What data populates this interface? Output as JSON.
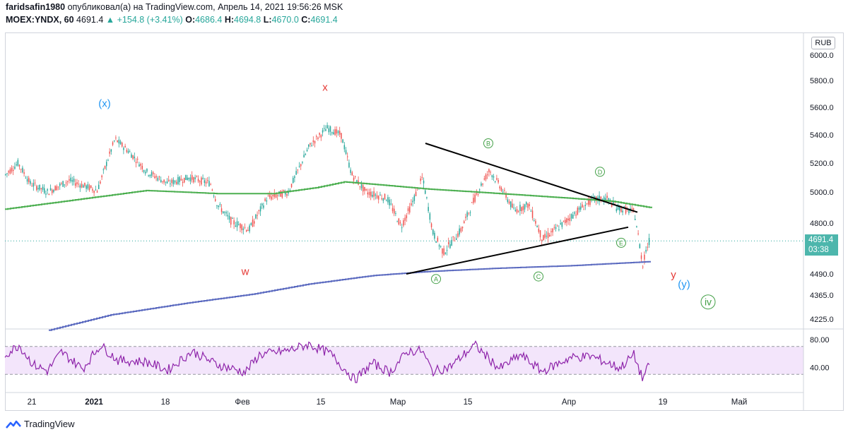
{
  "header": {
    "user": "faridsafin1980",
    "published": "опубликовал(а) на TradingView.com, Апрель 14, 2021 19:56:26 MSK",
    "symbol": "MOEX:YNDX, 60",
    "last": "4691.4",
    "change": "▲ +154.8 (+3.41%)",
    "o_label": "O:",
    "o": "4686.4",
    "h_label": "H:",
    "h": "4694.8",
    "l_label": "L:",
    "l": "4670.0",
    "c_label": "C:",
    "c": "4691.4"
  },
  "currency": "RUB",
  "price_tag": {
    "price": "4691.4",
    "countdown": "03:38"
  },
  "brand": "TradingView",
  "colors": {
    "up": "#26a69a",
    "down": "#ef5350",
    "ma_slow": "#5c6bc0",
    "ma_fast": "#4caf50",
    "rsi": "#8e24aa",
    "rsi_band": "#f3e5fb",
    "wave_red": "#e53935",
    "wave_blue": "#2196f3",
    "wave_green": "#43a047"
  },
  "chart_data": [
    {
      "type": "candlestick",
      "title": "MOEX:YNDX, 60",
      "y_ticks": [
        "6000.0",
        "5800.0",
        "5600.0",
        "5400.0",
        "5200.0",
        "5000.0",
        "4800.0",
        "4490.0",
        "4365.0",
        "4225.0"
      ],
      "y_tick_values": [
        6000,
        5800,
        5600,
        5400,
        5200,
        5000,
        4800,
        4490,
        4365,
        4225
      ],
      "x_ticks": [
        "21",
        "2021",
        "18",
        "Фев",
        "15",
        "Мар",
        "15",
        "Апр",
        "19",
        "Май"
      ],
      "x_tick_bold": [
        false,
        true,
        false,
        false,
        false,
        false,
        false,
        false,
        false,
        false
      ],
      "series": [
        {
          "name": "price",
          "points": [
            [
              0,
              5120
            ],
            [
              18,
              5200
            ],
            [
              35,
              5060
            ],
            [
              60,
              5000
            ],
            [
              90,
              5080
            ],
            [
              130,
              5010
            ],
            [
              155,
              5370
            ],
            [
              175,
              5280
            ],
            [
              200,
              5140
            ],
            [
              230,
              5060
            ],
            [
              260,
              5100
            ],
            [
              290,
              5060
            ],
            [
              300,
              4920
            ],
            [
              320,
              4810
            ],
            [
              345,
              4760
            ],
            [
              370,
              4960
            ],
            [
              400,
              5000
            ],
            [
              430,
              5320
            ],
            [
              455,
              5450
            ],
            [
              475,
              5400
            ],
            [
              490,
              5120
            ],
            [
              510,
              5000
            ],
            [
              540,
              4960
            ],
            [
              560,
              4780
            ],
            [
              575,
              4920
            ],
            [
              590,
              5100
            ],
            [
              605,
              4740
            ],
            [
              620,
              4620
            ],
            [
              645,
              4760
            ],
            [
              670,
              5020
            ],
            [
              685,
              5150
            ],
            [
              700,
              5040
            ],
            [
              720,
              4880
            ],
            [
              740,
              4920
            ],
            [
              760,
              4700
            ],
            [
              790,
              4800
            ],
            [
              810,
              4880
            ],
            [
              830,
              4950
            ],
            [
              850,
              4960
            ],
            [
              865,
              4900
            ],
            [
              890,
              4870
            ],
            [
              902,
              4540
            ],
            [
              905,
              4620
            ],
            [
              912,
              4700
            ]
          ]
        },
        {
          "name": "ma_fast",
          "points": [
            [
              0,
              4890
            ],
            [
              100,
              4950
            ],
            [
              200,
              5010
            ],
            [
              300,
              4990
            ],
            [
              380,
              4990
            ],
            [
              440,
              5030
            ],
            [
              480,
              5070
            ],
            [
              530,
              5050
            ],
            [
              600,
              5020
            ],
            [
              700,
              4990
            ],
            [
              800,
              4960
            ],
            [
              860,
              4940
            ],
            [
              913,
              4900
            ]
          ]
        },
        {
          "name": "ma_slow",
          "points": [
            [
              62,
              4160
            ],
            [
              150,
              4250
            ],
            [
              260,
              4320
            ],
            [
              350,
              4370
            ],
            [
              430,
              4430
            ],
            [
              520,
              4480
            ],
            [
              600,
              4505
            ],
            [
              700,
              4525
            ],
            [
              800,
              4540
            ],
            [
              913,
              4565
            ]
          ]
        }
      ],
      "trendlines": [
        {
          "from": [
            595,
            5340
          ],
          "to": [
            895,
            4870
          ]
        },
        {
          "from": [
            568,
            4490
          ],
          "to": [
            882,
            4775
          ]
        }
      ],
      "labels": [
        {
          "text": "(x)",
          "x": 148,
          "y": 5630,
          "color": "blue"
        },
        {
          "text": "x",
          "x": 460,
          "y": 5750,
          "color": "red"
        },
        {
          "text": "w",
          "x": 347,
          "y": 4505,
          "color": "red"
        },
        {
          "text": "y",
          "x": 953,
          "y": 4485,
          "color": "red"
        },
        {
          "text": "(y)",
          "x": 968,
          "y": 4430,
          "color": "blue"
        },
        {
          "text": "iv",
          "x": 1002,
          "y": 4325,
          "color": "green",
          "circle": true
        },
        {
          "text": "A",
          "x": 617,
          "y": 4460,
          "color": "green",
          "circle": true
        },
        {
          "text": "B",
          "x": 691,
          "y": 5340,
          "color": "green",
          "circle": true
        },
        {
          "text": "C",
          "x": 762,
          "y": 4475,
          "color": "green",
          "circle": true
        },
        {
          "text": "D",
          "x": 849,
          "y": 5140,
          "color": "green",
          "circle": true
        },
        {
          "text": "E",
          "x": 879,
          "y": 4680,
          "color": "green",
          "circle": true
        }
      ],
      "current_price": 4691.4
    },
    {
      "type": "line",
      "title": "RSI",
      "y_ticks": [
        "80.00",
        "40.00"
      ],
      "y_tick_values": [
        80,
        40
      ],
      "band": [
        30,
        70
      ],
      "ylim": [
        15,
        85
      ],
      "series": [
        {
          "name": "rsi",
          "points": [
            [
              0,
              58
            ],
            [
              20,
              72
            ],
            [
              40,
              44
            ],
            [
              60,
              35
            ],
            [
              80,
              62
            ],
            [
              110,
              38
            ],
            [
              135,
              72
            ],
            [
              160,
              50
            ],
            [
              200,
              48
            ],
            [
              230,
              36
            ],
            [
              265,
              63
            ],
            [
              300,
              44
            ],
            [
              340,
              33
            ],
            [
              360,
              58
            ],
            [
              400,
              64
            ],
            [
              430,
              73
            ],
            [
              460,
              60
            ],
            [
              495,
              22
            ],
            [
              520,
              46
            ],
            [
              545,
              33
            ],
            [
              570,
              63
            ],
            [
              590,
              64
            ],
            [
              605,
              34
            ],
            [
              630,
              41
            ],
            [
              665,
              72
            ],
            [
              700,
              38
            ],
            [
              730,
              58
            ],
            [
              760,
              34
            ],
            [
              800,
              54
            ],
            [
              830,
              56
            ],
            [
              870,
              39
            ],
            [
              890,
              58
            ],
            [
              902,
              24
            ],
            [
              912,
              43
            ]
          ]
        }
      ]
    }
  ]
}
